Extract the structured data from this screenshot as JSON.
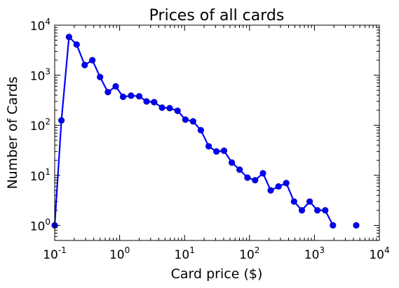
{
  "chart_data": {
    "type": "line",
    "title": "Prices of all cards",
    "xlabel": "Card price ($)",
    "ylabel": "Number of Cards",
    "x_scale": "log",
    "y_scale": "log",
    "xlim": [
      0.1,
      10000
    ],
    "ylim": [
      0.5,
      10000
    ],
    "grid": false,
    "line_color": "#0000ff",
    "marker": "circle",
    "x_ticks": [
      {
        "base": "10",
        "exp": "-1",
        "value": 0.1
      },
      {
        "base": "10",
        "exp": "0",
        "value": 1
      },
      {
        "base": "10",
        "exp": "1",
        "value": 10
      },
      {
        "base": "10",
        "exp": "2",
        "value": 100
      },
      {
        "base": "10",
        "exp": "3",
        "value": 1000
      },
      {
        "base": "10",
        "exp": "4",
        "value": 10000
      }
    ],
    "y_ticks": [
      {
        "base": "10",
        "exp": "0",
        "value": 1
      },
      {
        "base": "10",
        "exp": "1",
        "value": 10
      },
      {
        "base": "10",
        "exp": "2",
        "value": 100
      },
      {
        "base": "10",
        "exp": "3",
        "value": 1000
      },
      {
        "base": "10",
        "exp": "4",
        "value": 10000
      }
    ],
    "points": [
      {
        "x": 0.1,
        "y": 1
      },
      {
        "x": 0.127,
        "y": 125
      },
      {
        "x": 0.166,
        "y": 5800
      },
      {
        "x": 0.218,
        "y": 4100
      },
      {
        "x": 0.29,
        "y": 1600
      },
      {
        "x": 0.38,
        "y": 2000
      },
      {
        "x": 0.5,
        "y": 920
      },
      {
        "x": 0.66,
        "y": 460
      },
      {
        "x": 0.87,
        "y": 600
      },
      {
        "x": 1.13,
        "y": 370
      },
      {
        "x": 1.5,
        "y": 390
      },
      {
        "x": 2.0,
        "y": 380
      },
      {
        "x": 2.6,
        "y": 300
      },
      {
        "x": 3.4,
        "y": 290
      },
      {
        "x": 4.5,
        "y": 225
      },
      {
        "x": 5.9,
        "y": 220
      },
      {
        "x": 7.8,
        "y": 195
      },
      {
        "x": 10.3,
        "y": 130
      },
      {
        "x": 13.5,
        "y": 120
      },
      {
        "x": 17.8,
        "y": 80
      },
      {
        "x": 23.5,
        "y": 38
      },
      {
        "x": 31,
        "y": 30
      },
      {
        "x": 40.5,
        "y": 31
      },
      {
        "x": 53.5,
        "y": 18
      },
      {
        "x": 70.5,
        "y": 13
      },
      {
        "x": 93,
        "y": 9
      },
      {
        "x": 122,
        "y": 8
      },
      {
        "x": 161,
        "y": 11
      },
      {
        "x": 212,
        "y": 5
      },
      {
        "x": 280,
        "y": 6
      },
      {
        "x": 368,
        "y": 7
      },
      {
        "x": 485,
        "y": 3
      },
      {
        "x": 640,
        "y": 2
      },
      {
        "x": 845,
        "y": 3
      },
      {
        "x": 1110,
        "y": 2
      },
      {
        "x": 1465,
        "y": 2
      },
      {
        "x": 1930,
        "y": 1
      },
      {
        "x": 4400,
        "y": 1,
        "marker_only": true
      }
    ]
  }
}
